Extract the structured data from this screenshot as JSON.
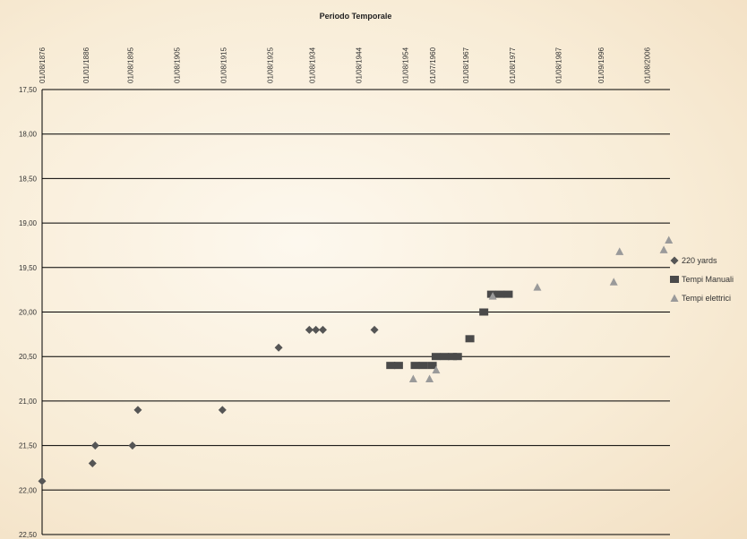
{
  "chart_data": {
    "type": "scatter",
    "title": "Periodo Temporale",
    "x_axis_position": "top",
    "y_reversed": true,
    "ylim": [
      17.5,
      22.5
    ],
    "yticks": [
      "17,50",
      "18,00",
      "18,50",
      "19,00",
      "19,50",
      "20,00",
      "20,50",
      "21,00",
      "21,50",
      "22,00",
      "22,50"
    ],
    "xlim": [
      "1876-08-01",
      "2011-07-01"
    ],
    "xticks": [
      "01/08/1876",
      "01/01/1886",
      "01/08/1895",
      "01/08/1905",
      "01/08/1915",
      "01/08/1925",
      "01/08/1934",
      "01/08/1944",
      "01/08/1954",
      "01/07/1960",
      "01/08/1967",
      "01/08/1977",
      "01/08/1987",
      "01/09/1996",
      "01/08/2006"
    ],
    "grid": "horizontal",
    "legend_position": "right",
    "colors": {
      "diamond": "#555555",
      "square": "#4a4a4a",
      "triangle": "#9a9a9a",
      "grid": "#000000"
    },
    "series": [
      {
        "name": "220 yards",
        "marker": "diamond",
        "points": [
          {
            "x": "1876-08-01",
            "y": 21.9
          },
          {
            "x": "1887-06-01",
            "y": 21.7
          },
          {
            "x": "1888-01-01",
            "y": 21.5
          },
          {
            "x": "1896-01-01",
            "y": 21.5
          },
          {
            "x": "1897-03-01",
            "y": 21.1
          },
          {
            "x": "1915-05-01",
            "y": 21.1
          },
          {
            "x": "1927-06-01",
            "y": 20.4
          },
          {
            "x": "1934-01-01",
            "y": 20.2
          },
          {
            "x": "1935-06-01",
            "y": 20.2
          },
          {
            "x": "1936-12-01",
            "y": 20.2
          },
          {
            "x": "1948-01-01",
            "y": 20.2
          }
        ]
      },
      {
        "name": "Tempi Manuali",
        "marker": "square",
        "points": [
          {
            "x": "1951-07-01",
            "y": 20.6
          },
          {
            "x": "1953-03-01",
            "y": 20.6
          },
          {
            "x": "1956-10-01",
            "y": 20.6
          },
          {
            "x": "1958-07-01",
            "y": 20.6
          },
          {
            "x": "1960-06-01",
            "y": 20.6
          },
          {
            "x": "1961-04-01",
            "y": 20.5
          },
          {
            "x": "1963-02-01",
            "y": 20.5
          },
          {
            "x": "1964-10-01",
            "y": 20.5
          },
          {
            "x": "1965-11-01",
            "y": 20.5
          },
          {
            "x": "1968-07-01",
            "y": 20.3
          },
          {
            "x": "1971-07-01",
            "y": 20.0
          },
          {
            "x": "1973-03-01",
            "y": 19.8
          },
          {
            "x": "1975-01-01",
            "y": 19.8
          },
          {
            "x": "1976-10-01",
            "y": 19.8
          }
        ]
      },
      {
        "name": "Tempi elettrici",
        "marker": "triangle",
        "points": [
          {
            "x": "1956-05-01",
            "y": 20.75
          },
          {
            "x": "1959-11-01",
            "y": 20.75
          },
          {
            "x": "1961-04-01",
            "y": 20.65
          },
          {
            "x": "1973-06-01",
            "y": 19.82
          },
          {
            "x": "1983-01-01",
            "y": 19.72
          },
          {
            "x": "1999-06-01",
            "y": 19.66
          },
          {
            "x": "2000-09-01",
            "y": 19.32
          },
          {
            "x": "2010-03-01",
            "y": 19.3
          },
          {
            "x": "2011-04-01",
            "y": 19.19
          }
        ]
      }
    ]
  }
}
